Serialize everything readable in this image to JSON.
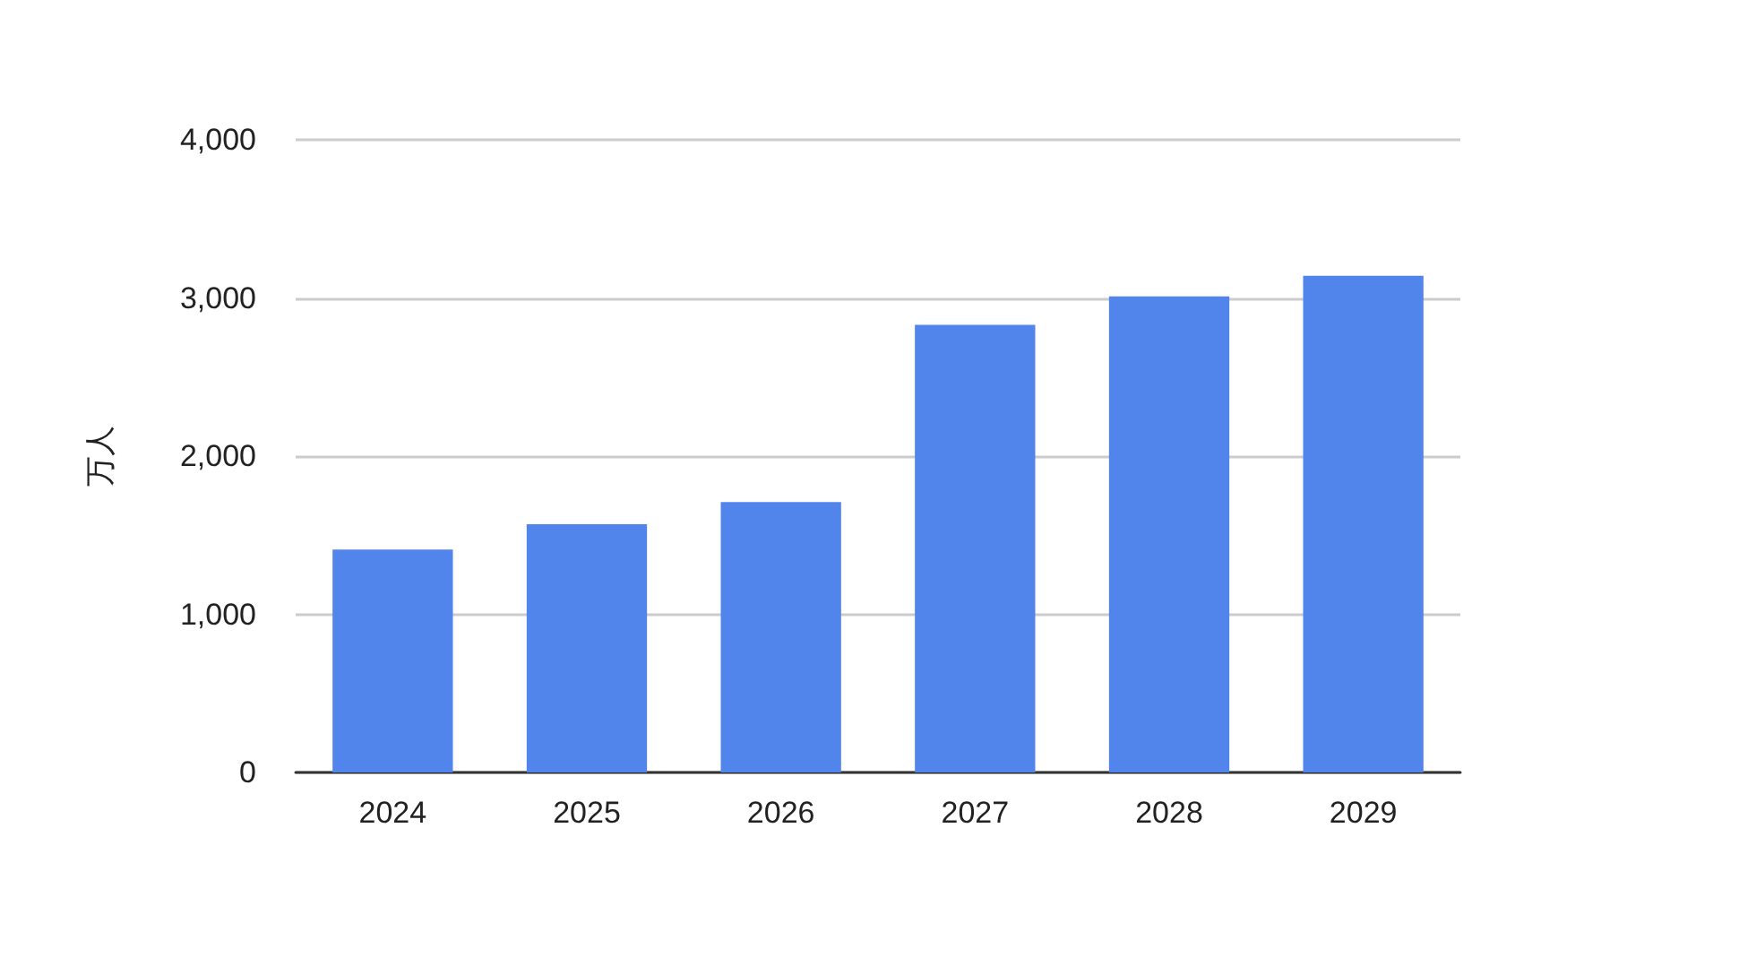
{
  "chart_data": {
    "type": "bar",
    "ylabel": "万人",
    "categories": [
      "2024",
      "2025",
      "2026",
      "2027",
      "2028",
      "2029"
    ],
    "series": [
      {
        "color": "#5285ec",
        "values": [
          1410,
          1570,
          1710,
          2830,
          3010,
          3140
        ]
      }
    ],
    "ylim": [
      0,
      4000
    ],
    "yticks": [
      {
        "value": 0,
        "label": "0"
      },
      {
        "value": 1000,
        "label": "1,000"
      },
      {
        "value": 2000,
        "label": "2,000"
      },
      {
        "value": 3000,
        "label": "3,000"
      },
      {
        "value": 4000,
        "label": "4,000"
      }
    ],
    "grid": "y"
  }
}
